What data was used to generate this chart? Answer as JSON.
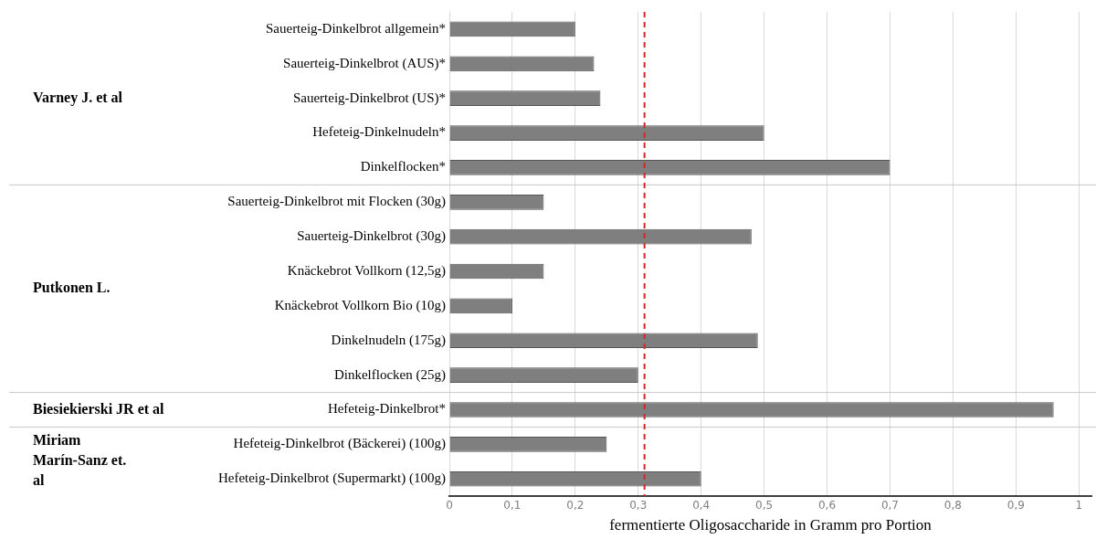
{
  "chart_data": {
    "type": "bar",
    "orientation": "horizontal",
    "categories": [
      "Sauerteig-Dinkelbrot allgemein*",
      "Sauerteig-Dinkelbrot (AUS)*",
      "Sauerteig-Dinkelbrot (US)*",
      "Hefeteig-Dinkelnudeln*",
      "Dinkelflocken*",
      "Sauerteig-Dinkelbrot mit Flocken (30g)",
      "Sauerteig-Dinkelbrot (30g)",
      "Knäckebrot Vollkorn (12,5g)",
      "Knäckebrot Vollkorn Bio (10g)",
      "Dinkelnudeln (175g)",
      "Dinkelflocken (25g)",
      "Hefeteig-Dinkelbrot*",
      "Hefeteig-Dinkelbrot (Bäckerei) (100g)",
      "Hefeteig-Dinkelbrot (Supermarkt) (100g)"
    ],
    "series": [
      {
        "color": "#7f7f7f",
        "values": [
          0.2,
          0.23,
          0.24,
          0.5,
          0.7,
          0.15,
          0.48,
          0.15,
          0.1,
          0.49,
          0.3,
          0.96,
          0.25,
          0.4
        ]
      }
    ],
    "xlabel": "fermentierte Oligosaccharide in Gramm pro Portion",
    "xlim": [
      0,
      1.02
    ],
    "xticks": [
      0,
      {
        "value": 0.1,
        "label": "0,1"
      },
      {
        "value": 0.2,
        "label": "0,2"
      },
      {
        "value": 0.3,
        "label": "0,3"
      },
      {
        "value": 0.4,
        "label": "0,4"
      },
      {
        "value": 0.5,
        "label": "0,5"
      },
      {
        "value": 0.6,
        "label": "0,6"
      },
      {
        "value": 0.7,
        "label": "0,7"
      },
      {
        "value": 0.8,
        "label": "0,8"
      },
      {
        "value": 0.9,
        "label": "0,9"
      },
      1
    ],
    "ref_lines": [
      {
        "axis": "x",
        "value": 0.31,
        "color": "#d62728",
        "line_style": "dashed"
      }
    ],
    "annotations": [
      "Varney J. et al",
      "Putkonen L.",
      "Biesiekierski JR et al",
      "Miriam Marín-Sanz et. al"
    ],
    "grid": "x",
    "legend": false
  }
}
